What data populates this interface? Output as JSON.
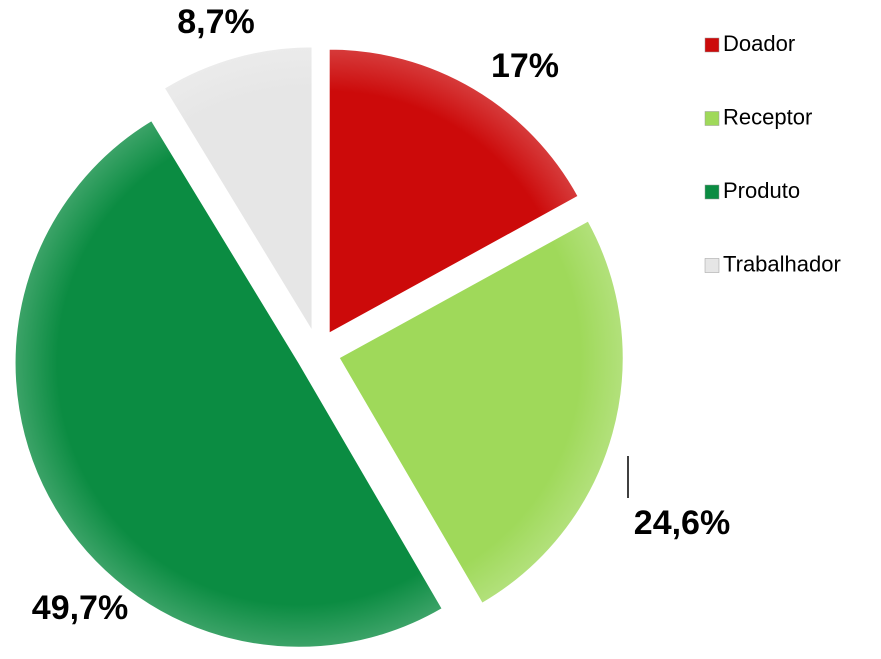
{
  "chart_data": {
    "type": "pie",
    "categories": [
      "Doador",
      "Receptor",
      "Produto",
      "Trabalhador"
    ],
    "values": [
      17,
      24.6,
      49.7,
      8.7
    ],
    "value_labels": [
      "17%",
      "24,6%",
      "49,7%",
      "8,7%"
    ],
    "colors": [
      "#cc0a0a",
      "#9fd95a",
      "#0b8c42",
      "#e6e6e6"
    ],
    "legend": "right"
  }
}
